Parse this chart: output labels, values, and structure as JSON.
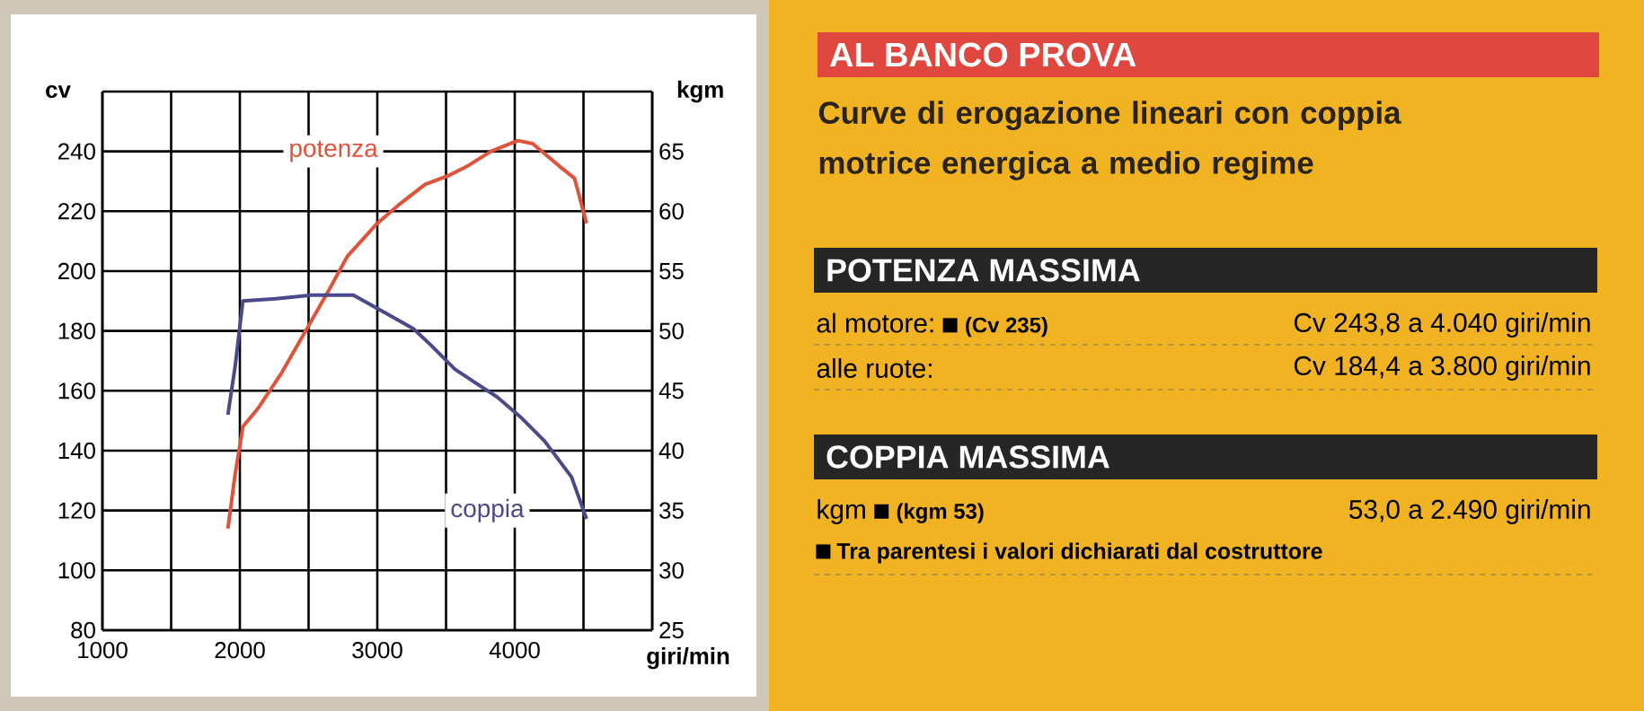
{
  "chart_data": [
    {
      "type": "line",
      "xlabel": "giri/min",
      "ylabel": "cv",
      "y2label": "kgm",
      "grid": true,
      "xlim": [
        1000,
        5000
      ],
      "xticks": [
        1000,
        {
          "value": 1500,
          "label": null
        },
        2000,
        {
          "value": 2500,
          "label": null
        },
        3000,
        {
          "value": 3500,
          "label": null
        },
        4000,
        {
          "value": 4500,
          "label": null
        },
        {
          "value": 5000,
          "label": null
        }
      ],
      "ylim": [
        80,
        260
      ],
      "yticks": [
        80,
        100,
        120,
        140,
        160,
        180,
        200,
        220,
        240,
        {
          "value": 260,
          "label": null
        }
      ],
      "y2lim": [
        25,
        70
      ],
      "y2ticks": [
        25,
        30,
        35,
        40,
        45,
        50,
        55,
        60,
        65
      ],
      "series": [
        {
          "name": "potenza",
          "color": "#e0533a",
          "x": [
            1913,
            1965,
            2022,
            2130,
            2304,
            2478,
            2652,
            2783,
            3000,
            3152,
            3348,
            3522,
            3652,
            3826,
            4022,
            4130,
            4326,
            4435,
            4522
          ],
          "values": [
            114,
            132,
            148,
            154,
            166,
            180,
            194,
            205,
            216,
            222,
            229,
            232,
            235,
            240,
            243.6,
            242.6,
            235,
            231,
            216
          ]
        },
        {
          "name": "coppia",
          "color": "#4a4a8a",
          "axis": "y2",
          "x": [
            1913,
            1965,
            2022,
            2261,
            2522,
            2826,
            3043,
            3261,
            3391,
            3565,
            3696,
            3870,
            4043,
            4217,
            4413,
            4522
          ],
          "values": [
            43.0,
            47.0,
            52.5,
            52.7,
            53.0,
            53.0,
            51.6,
            50.2,
            48.8,
            46.8,
            45.8,
            44.5,
            42.8,
            40.8,
            37.8,
            34.3
          ]
        }
      ]
    },
    {
      "type": "other",
      "title": "AL BANCO PROVA",
      "subtitle": "Curve di erogazione lineari con coppia motrice energica a medio regime",
      "annotations": [
        "POTENZA MASSIMA",
        "al motore:",
        "(Cv 235)",
        "Cv 243,8 a 4.040 giri/min",
        "alle ruote:",
        "Cv 184,4 a 3.800 giri/min",
        "COPPIA MASSIMA",
        "kgm",
        "(kgm 53)",
        "53,0 a 2.490 giri/min",
        "Tra parentesi i valori dichiarati dal costruttore"
      ]
    }
  ]
}
